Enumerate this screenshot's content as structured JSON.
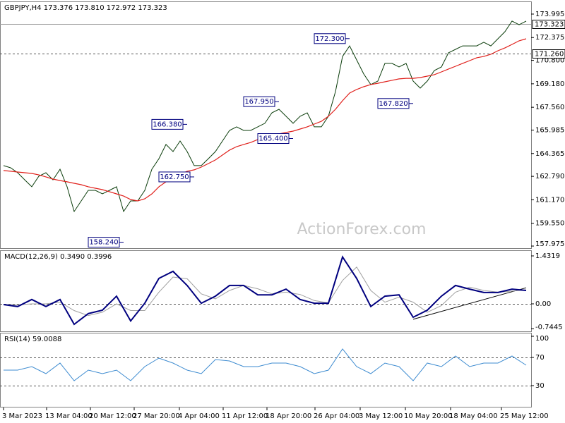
{
  "chart_data": [
    {
      "type": "line",
      "title": "GBPJPY,H4  173.376 173.810 172.972 173.323",
      "watermark": "ActionForex.com",
      "ylim": [
        157.83,
        174.87
      ],
      "yticks": [
        157.975,
        {
          "value": 159.55,
          "label": "159.550"
        },
        {
          "value": 161.17,
          "label": "161.170"
        },
        {
          "value": 162.79,
          "label": "162.790"
        },
        164.365,
        165.985,
        {
          "value": 167.56,
          "label": "167.560"
        },
        {
          "value": 169.18,
          "label": "169.180"
        },
        {
          "value": 170.8,
          "label": "170.800"
        },
        172.375,
        173.995
      ],
      "xlim": [
        0,
        74
      ],
      "xticks": [
        {
          "value": 0,
          "label": "3 Mar 2023"
        },
        {
          "value": 6.1,
          "label": "13 Mar 04:00"
        },
        {
          "value": 12.3,
          "label": "20 Mar 12:00"
        },
        {
          "value": 18.5,
          "label": "27 Mar 20:00"
        },
        {
          "value": 24.9,
          "label": "4 Apr 04:00"
        },
        {
          "value": 31.1,
          "label": "11 Apr 12:00"
        },
        {
          "value": 37.3,
          "label": "18 Apr 20:00"
        },
        {
          "value": 44.1,
          "label": "26 Apr 04:00"
        },
        {
          "value": 50.5,
          "label": "3 May 12:00"
        },
        {
          "value": 56.9,
          "label": "10 May 20:00"
        },
        {
          "value": 63.3,
          "label": "18 May 04:00"
        },
        {
          "value": 70.5,
          "label": "25 May 12:00"
        }
      ],
      "levels": [
        {
          "value": 173.323,
          "label": "173.323",
          "style": "solid"
        },
        {
          "value": 171.26,
          "label": "171.260",
          "style": "dotted"
        }
      ],
      "annotations": [
        {
          "x": 49,
          "value": 172.3,
          "label": "172.300"
        },
        {
          "x": 39,
          "value": 167.95,
          "label": "167.950"
        },
        {
          "x": 26,
          "value": 166.38,
          "label": "166.380"
        },
        {
          "x": 41,
          "value": 165.4,
          "label": "165.400"
        },
        {
          "x": 27,
          "value": 162.75,
          "label": "162.750"
        },
        {
          "x": 17,
          "value": 158.24,
          "label": "158.240"
        },
        {
          "x": 58,
          "value": 167.82,
          "label": "167.820"
        }
      ],
      "series": [
        {
          "color": "#0b3d0b",
          "width": 1,
          "values": [
            163.53,
            163.38,
            163.04,
            162.55,
            162.07,
            162.8,
            163.04,
            162.55,
            163.28,
            162.07,
            160.36,
            161.09,
            161.82,
            161.82,
            161.58,
            161.82,
            162.07,
            160.36,
            161.09,
            161.09,
            161.82,
            163.28,
            164.01,
            164.99,
            164.5,
            165.23,
            164.5,
            163.53,
            163.53,
            164.01,
            164.5,
            165.23,
            165.96,
            166.21,
            165.96,
            165.96,
            166.21,
            166.45,
            167.18,
            167.42,
            166.94,
            166.45,
            166.94,
            167.18,
            166.21,
            166.21,
            166.94,
            168.64,
            171.07,
            171.8,
            170.83,
            169.86,
            169.13,
            169.37,
            170.59,
            170.59,
            170.34,
            170.59,
            169.37,
            168.88,
            169.37,
            170.1,
            170.34,
            171.32,
            171.56,
            171.8,
            171.8,
            171.8,
            172.05,
            171.8,
            172.29,
            172.78,
            173.51,
            173.26,
            173.51
          ]
        },
        {
          "color": "#e0201b",
          "width": 1.2,
          "values": [
            163.19,
            163.14,
            163.09,
            163.04,
            162.99,
            162.89,
            162.75,
            162.6,
            162.5,
            162.41,
            162.31,
            162.21,
            162.07,
            161.97,
            161.87,
            161.73,
            161.58,
            161.43,
            161.19,
            161.09,
            161.24,
            161.58,
            162.07,
            162.41,
            162.7,
            162.94,
            163.14,
            163.24,
            163.43,
            163.67,
            163.92,
            164.26,
            164.6,
            164.84,
            164.99,
            165.13,
            165.33,
            165.43,
            165.57,
            165.72,
            165.82,
            165.91,
            166.06,
            166.21,
            166.4,
            166.59,
            166.94,
            167.42,
            168.01,
            168.54,
            168.79,
            168.98,
            169.13,
            169.22,
            169.32,
            169.42,
            169.52,
            169.56,
            169.56,
            169.61,
            169.71,
            169.81,
            170.0,
            170.2,
            170.39,
            170.59,
            170.78,
            170.98,
            171.07,
            171.22,
            171.46,
            171.66,
            171.9,
            172.15,
            172.29
          ]
        }
      ]
    },
    {
      "type": "line",
      "title": "MACD(12,26,9) 0.3490 0.3996",
      "ylim": [
        -0.821,
        1.6
      ],
      "yticks": [
        1.4319,
        {
          "value": 0,
          "label": "0.00"
        },
        -0.7445
      ],
      "levels": [
        {
          "value": 0,
          "style": "dotted"
        }
      ],
      "trendline": {
        "from": [
          29,
          -0.46
        ],
        "to": [
          37,
          0.48
        ]
      },
      "series": [
        {
          "color": "#a0a0a0",
          "width": 1,
          "values": [
            -0.02,
            -0.03,
            0.0,
            0.0,
            0.05,
            -0.2,
            -0.35,
            -0.25,
            0.0,
            -0.2,
            -0.2,
            0.35,
            0.8,
            0.75,
            0.3,
            0.15,
            0.4,
            0.55,
            0.45,
            0.3,
            0.35,
            0.28,
            0.1,
            0.03,
            0.7,
            1.1,
            0.4,
            0.05,
            0.2,
            0.05,
            -0.25,
            -0.05,
            0.35,
            0.5,
            0.4,
            0.35,
            0.38,
            0.42
          ]
        },
        {
          "color": "#00007f",
          "width": 2,
          "values": [
            -0.02,
            -0.08,
            0.13,
            -0.08,
            0.13,
            -0.61,
            -0.29,
            -0.19,
            0.23,
            -0.51,
            0.02,
            0.76,
            0.97,
            0.55,
            0.02,
            0.23,
            0.55,
            0.55,
            0.27,
            0.27,
            0.44,
            0.13,
            0.02,
            0.02,
            1.4,
            0.76,
            -0.08,
            0.23,
            0.27,
            -0.4,
            -0.19,
            0.23,
            0.55,
            0.44,
            0.34,
            0.34,
            0.44,
            0.4
          ]
        }
      ]
    },
    {
      "type": "line",
      "title": "RSI(14) 59.0088",
      "ylim": [
        0,
        105
      ],
      "yticks": [
        100,
        70,
        30
      ],
      "levels": [
        {
          "value": 70,
          "style": "dotted"
        },
        {
          "value": 30,
          "style": "dotted"
        }
      ],
      "series": [
        {
          "color": "#3d8bd0",
          "width": 1,
          "values": [
            52,
            52,
            57,
            47,
            62,
            37,
            52,
            47,
            52,
            37,
            57,
            69,
            62,
            52,
            47,
            67,
            65,
            57,
            57,
            62,
            62,
            57,
            47,
            52,
            82,
            57,
            47,
            62,
            57,
            37,
            62,
            57,
            72,
            57,
            62,
            62,
            72,
            59
          ]
        }
      ]
    }
  ]
}
